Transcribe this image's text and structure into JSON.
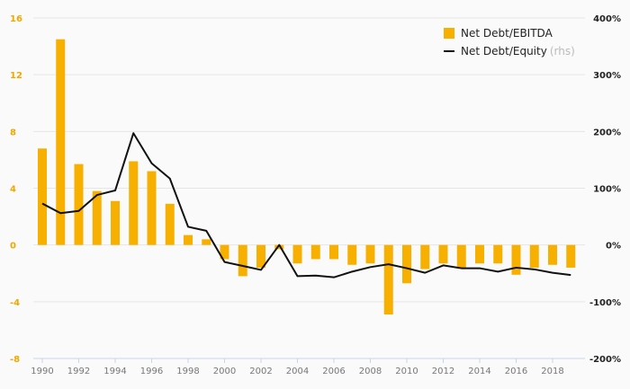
{
  "colors": {
    "bar": "#f8b000",
    "line": "#111111",
    "left_axis_text": "#f0a800",
    "right_axis_text": "#222222",
    "grid": "#e6e6e6"
  },
  "legend": {
    "position": "top-right",
    "bar_label": "Net Debt/EBITDA",
    "line_label": "Net Debt/Equity",
    "line_suffix": "(rhs)"
  },
  "chart_data": {
    "type": "bar",
    "x": [
      1990,
      1991,
      1992,
      1993,
      1994,
      1995,
      1996,
      1997,
      1998,
      1999,
      2000,
      2001,
      2002,
      2003,
      2004,
      2005,
      2006,
      2007,
      2008,
      2009,
      2010,
      2011,
      2012,
      2013,
      2014,
      2015,
      2016,
      2017,
      2018,
      2019
    ],
    "x_tick_labels": [
      "1990",
      "1992",
      "1994",
      "1996",
      "1998",
      "2000",
      "2002",
      "2004",
      "2006",
      "2008",
      "2010",
      "2012",
      "2014",
      "2016",
      "2018"
    ],
    "series": [
      {
        "name": "Net Debt/EBITDA",
        "type": "bar",
        "axis": "left",
        "values": [
          6.8,
          14.5,
          5.7,
          3.8,
          3.1,
          5.9,
          5.2,
          2.9,
          0.7,
          0.4,
          -1.0,
          -2.2,
          -1.6,
          -0.3,
          -1.3,
          -1.0,
          -1.0,
          -1.4,
          -1.3,
          -4.9,
          -2.7,
          -1.7,
          -1.3,
          -1.6,
          -1.3,
          -1.3,
          -2.1,
          -1.6,
          -1.4,
          -1.6
        ]
      },
      {
        "name": "Net Debt/Equity",
        "type": "line",
        "axis": "right",
        "values": [
          73,
          56,
          60,
          88,
          96,
          197,
          144,
          117,
          32,
          25,
          -30,
          -37,
          -44,
          0,
          -55,
          -54,
          -57,
          -47,
          -39,
          -34,
          -41,
          -49,
          -36,
          -41,
          -41,
          -47,
          -40,
          -43,
          -49,
          -53
        ]
      }
    ],
    "y_left": {
      "ticks": [
        16,
        12,
        8,
        4,
        0,
        -4,
        -8
      ],
      "ylim": [
        -8,
        16
      ]
    },
    "y_right": {
      "tick_labels": [
        "400%",
        "300%",
        "200%",
        "100%",
        "0%",
        "-100%",
        "-200%"
      ],
      "ticks": [
        400,
        300,
        200,
        100,
        0,
        -100,
        -200
      ],
      "ylim": [
        -200,
        400
      ]
    },
    "grid": true
  }
}
